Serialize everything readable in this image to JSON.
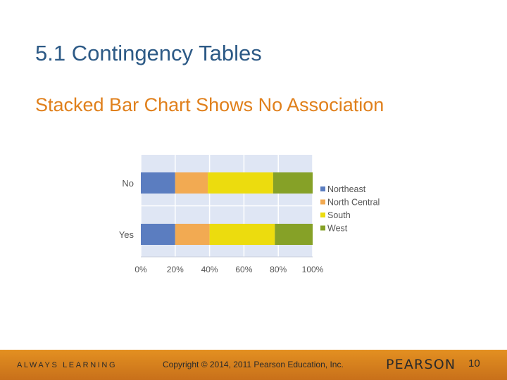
{
  "slide": {
    "title": "5.1 Contingency Tables",
    "subtitle": "Stacked Bar Chart Shows No Association"
  },
  "footer": {
    "tagline": "ALWAYS LEARNING",
    "copyright": "Copyright © 2014, 2011 Pearson Education, Inc.",
    "brand": "PEARSON",
    "page_number": "10"
  },
  "colors": {
    "title": "#2d5a86",
    "subtitle": "#e0801c",
    "footer_bar": "#d9801e",
    "plot_background": "#dfe6f4"
  },
  "chart_data": {
    "type": "bar",
    "orientation": "horizontal",
    "stacked": true,
    "percent": true,
    "categories": [
      "No",
      "Yes"
    ],
    "series": [
      {
        "name": "Northeast",
        "color": "#5b7dc0",
        "values": [
          20,
          20
        ]
      },
      {
        "name": "North Central",
        "color": "#f2aa52",
        "values": [
          19,
          20
        ]
      },
      {
        "name": "South",
        "color": "#ecdc0e",
        "values": [
          38,
          38
        ]
      },
      {
        "name": "West",
        "color": "#86a127",
        "values": [
          23,
          22
        ]
      }
    ],
    "xlim": [
      0,
      100
    ],
    "xticks": [
      "0%",
      "20%",
      "40%",
      "60%",
      "80%",
      "100%"
    ],
    "grid": true,
    "legend": "right"
  }
}
